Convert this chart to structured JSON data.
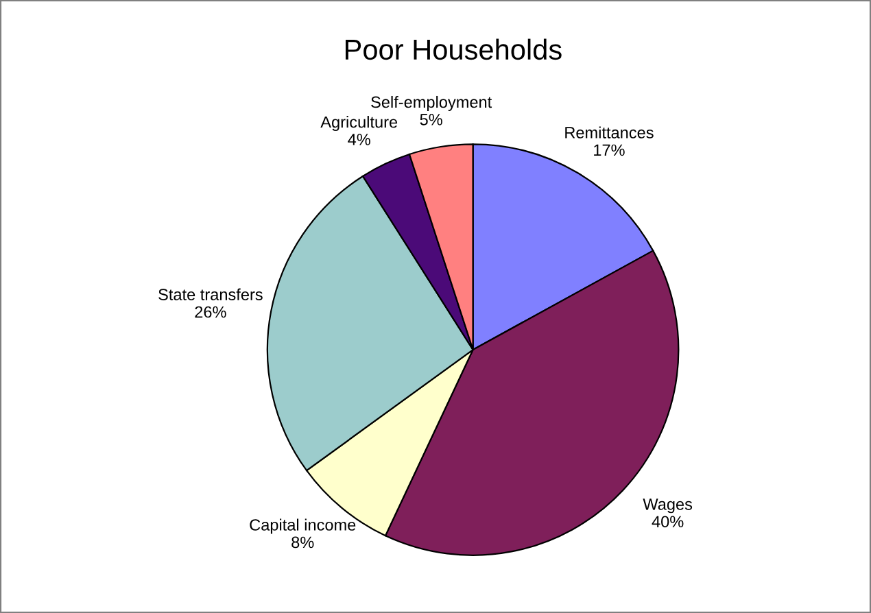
{
  "chart_data": {
    "type": "pie",
    "title": "Poor Households",
    "categories": [
      "Remittances",
      "Wages",
      "Capital income",
      "State transfers",
      "Agriculture",
      "Self-employment"
    ],
    "values": [
      17,
      40,
      8,
      26,
      4,
      5
    ],
    "value_labels": [
      "17%",
      "40%",
      "8%",
      "26%",
      "4%",
      "5%"
    ],
    "colors": [
      "#8080ff",
      "#7f1f5a",
      "#ffffcc",
      "#9ccccc",
      "#4b0a78",
      "#ff8080"
    ],
    "legend": false
  }
}
